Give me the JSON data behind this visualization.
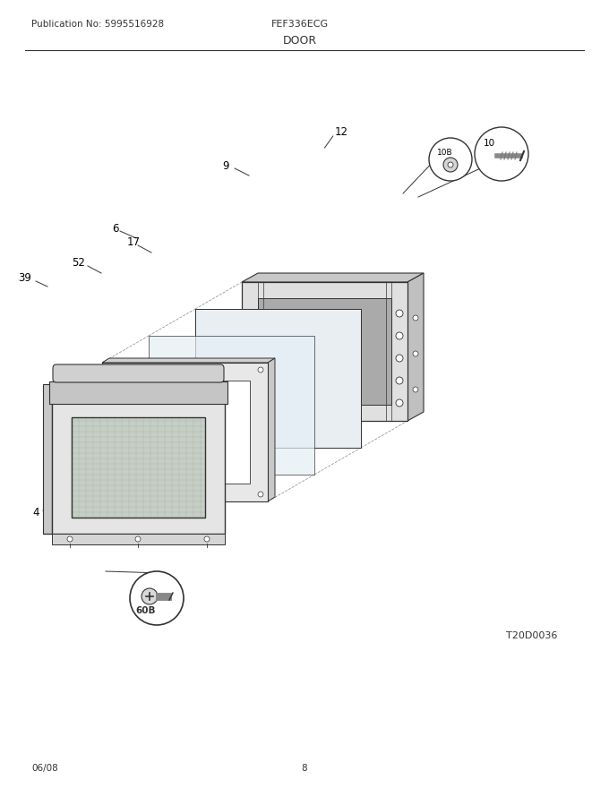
{
  "title_left": "Publication No: 5995516928",
  "title_center": "FEF336ECG",
  "title_section": "DOOR",
  "footer_left": "06/08",
  "footer_center": "8",
  "diagram_id": "T20D0036",
  "bg_color": "#ffffff",
  "line_color": "#333333"
}
